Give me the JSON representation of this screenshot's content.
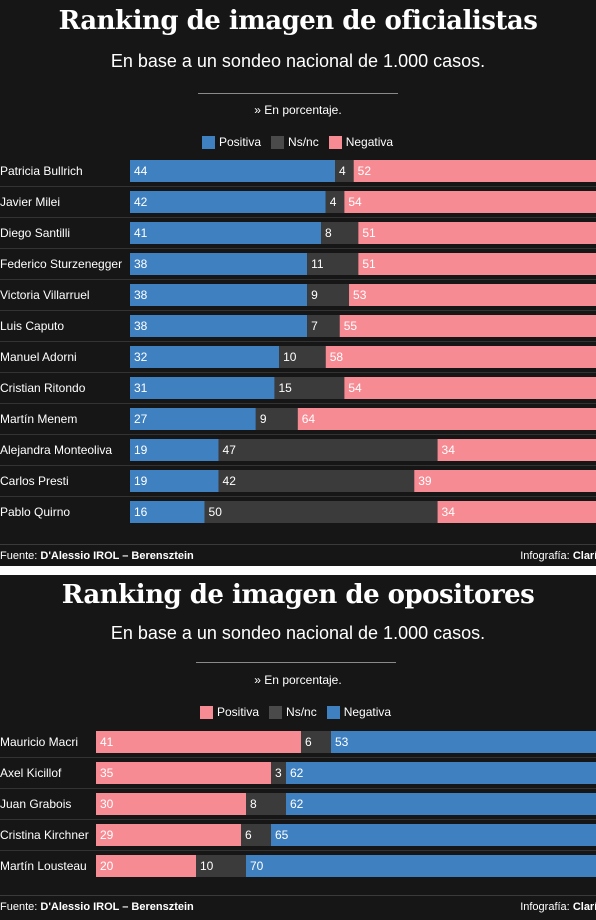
{
  "colors": {
    "positiva_oficialistas": "#3f80c0",
    "negativa_oficialistas": "#f78b93",
    "nsnc": "#3b3b3b",
    "positiva_opositores": "#f78b93",
    "negativa_opositores": "#3f80c0",
    "background": "#161616"
  },
  "chart_data": [
    {
      "type": "bar",
      "stacked": true,
      "orientation": "horizontal",
      "title": "Ranking de imagen de oficialistas",
      "subtitle": "En base a un sondeo nacional de 1.000 casos.",
      "note": "» En porcentaje.",
      "legend": [
        "Positiva",
        "Ns/nc",
        "Negativa"
      ],
      "legend_placement": "top",
      "categories": [
        "Patricia Bullrich",
        "Javier Milei",
        "Diego Santilli",
        "Federico Sturzenegger",
        "Victoria Villarruel",
        "Luis Caputo",
        "Manuel Adorni",
        "Cristian Ritondo",
        "Martín Menem",
        "Alejandra Monteoliva",
        "Carlos Presti",
        "Pablo Quirno"
      ],
      "series": [
        {
          "name": "Positiva",
          "values": [
            44,
            42,
            41,
            38,
            38,
            38,
            32,
            31,
            27,
            19,
            19,
            16
          ]
        },
        {
          "name": "Ns/nc",
          "values": [
            4,
            4,
            8,
            11,
            9,
            7,
            10,
            15,
            9,
            47,
            42,
            50
          ]
        },
        {
          "name": "Negativa",
          "values": [
            52,
            54,
            51,
            51,
            53,
            55,
            58,
            54,
            64,
            34,
            39,
            34
          ]
        }
      ],
      "source_label": "Fuente:",
      "source": "D'Alessio IROL – Berensztein",
      "credit_label": "Infografía:",
      "credit": "Clarín"
    },
    {
      "type": "bar",
      "stacked": true,
      "orientation": "horizontal",
      "title": "Ranking de imagen de opositores",
      "subtitle": "En base a un sondeo nacional de 1.000 casos.",
      "note": "» En porcentaje.",
      "legend": [
        "Positiva",
        "Ns/nc",
        "Negativa"
      ],
      "legend_placement": "top",
      "categories": [
        "Mauricio Macri",
        "Axel Kicillof",
        "Juan Grabois",
        "Cristina Kirchner",
        "Martín Lousteau"
      ],
      "series": [
        {
          "name": "Positiva",
          "values": [
            41,
            35,
            30,
            29,
            20
          ]
        },
        {
          "name": "Ns/nc",
          "values": [
            6,
            3,
            8,
            6,
            10
          ]
        },
        {
          "name": "Negativa",
          "values": [
            53,
            62,
            62,
            65,
            70
          ]
        }
      ],
      "source_label": "Fuente:",
      "source": "D'Alessio IROL – Berensztein",
      "credit_label": "Infografía:",
      "credit": "Clarín"
    }
  ]
}
